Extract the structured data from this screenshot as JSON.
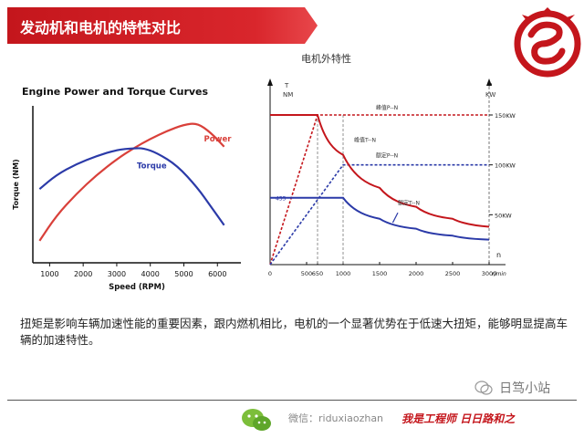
{
  "header": {
    "title": "发动机和电机的特性对比"
  },
  "caption": "扭矩是影响车辆加速性能的重要因素，跟内燃机相比，电机的一个显著优势在于低速大扭矩，能够明显提高车辆的加速特性。",
  "footer": {
    "wechat_label": "微信：riduxiaozhan",
    "slogan": "我是工程师 日日路和之"
  },
  "watermark": {
    "text": "日笃小站"
  },
  "chart_data": [
    {
      "type": "line",
      "title": "Engine Power and Torque Curves",
      "xlabel": "Speed (RPM)",
      "ylabel": "Torque (NM)",
      "xlim": [
        500,
        6700
      ],
      "ylim": [
        0,
        100
      ],
      "x_ticks": [
        1000,
        2000,
        3000,
        4000,
        5000,
        6000
      ],
      "grid": false,
      "series": [
        {
          "name": "Power",
          "color": "#d9403a",
          "x": [
            700,
            1200,
            1800,
            2400,
            3000,
            3500,
            4000,
            4500,
            5000,
            5400,
            5800,
            6200
          ],
          "y": [
            14,
            30,
            44,
            56,
            66,
            73,
            79,
            84,
            88,
            89,
            83,
            74
          ]
        },
        {
          "name": "Torque",
          "color": "#2b3aa8",
          "x": [
            700,
            1200,
            1800,
            2400,
            3000,
            3500,
            3800,
            4200,
            4800,
            5400,
            5800,
            6200
          ],
          "y": [
            47,
            56,
            63,
            68,
            72,
            73,
            73,
            70,
            62,
            48,
            36,
            24
          ]
        }
      ]
    },
    {
      "type": "line",
      "title": "电机外特性",
      "xlabel": "r/min",
      "ylabel": "T\nNM",
      "y2label": "P\nKW",
      "xlim": [
        0,
        3000
      ],
      "x_ticks": [
        0,
        500,
        650,
        1000,
        1500,
        2000,
        2500,
        3000
      ],
      "x_tick_labels": [
        "0",
        "500",
        "650",
        "1000",
        "1500",
        "2000",
        "2500",
        "3000"
      ],
      "y_ticks_right": [
        "50KW",
        "100KW",
        "150KW"
      ],
      "right_axis_marker": "n",
      "grid": false,
      "series": [
        {
          "name": "峰值P--N",
          "color": "#c4161c",
          "style": "dotted",
          "x": [
            0,
            650,
            3000
          ],
          "y": [
            0,
            150,
            150
          ]
        },
        {
          "name": "额定P--N",
          "color": "#2b3aa8",
          "style": "dotted",
          "x": [
            0,
            1000,
            3000
          ],
          "y": [
            0,
            100,
            100
          ]
        },
        {
          "name": "峰值T--N",
          "color": "#c4161c",
          "style": "solid",
          "x": [
            0,
            650,
            1000,
            1500,
            2000,
            2500,
            3000
          ],
          "y": [
            150,
            150,
            110,
            77,
            58,
            46,
            38
          ]
        },
        {
          "name": "额定T--N",
          "color": "#2b3aa8",
          "style": "solid",
          "x": [
            0,
            1000,
            1500,
            2000,
            2500,
            3000
          ],
          "y": [
            67,
            67,
            46,
            36,
            29,
            25
          ]
        }
      ],
      "annotations": [
        "455"
      ]
    }
  ]
}
